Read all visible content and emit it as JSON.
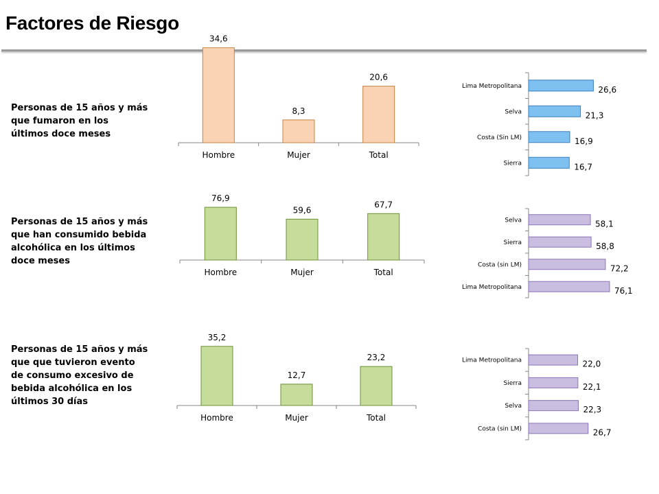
{
  "page": {
    "title": "Factores de Riesgo"
  },
  "rows": [
    {
      "label": "Personas de 15 años y más que fumaron en los últimos doce meses"
    },
    {
      "label": "Personas de 15 años y más que han consumido bebida alcohólica en los últimos doce meses"
    },
    {
      "label": "Personas de 15 años y más que que tuvieron evento de consumo excesivo de bebida alcohólica en los últimos 30 días"
    }
  ],
  "chart_data": [
    {
      "type": "bar",
      "orientation": "vertical",
      "categories": [
        "Hombre",
        "Mujer",
        "Total"
      ],
      "values": [
        34.6,
        8.3,
        20.6
      ],
      "labels": [
        "34,6",
        "8,3",
        "20,6"
      ],
      "ylim": [
        0,
        40
      ],
      "grid": false,
      "fill": "#fad3b4",
      "stroke": "#c8823f"
    },
    {
      "type": "bar",
      "orientation": "horizontal",
      "categories": [
        "Lima Metropolitana",
        "Selva",
        "Costa (Sin LM)",
        "Sierra"
      ],
      "values": [
        26.6,
        21.3,
        16.9,
        16.7
      ],
      "labels": [
        "26,6",
        "21,3",
        "16,9",
        "16,7"
      ],
      "xlim": [
        0,
        28
      ],
      "grid": false,
      "fill": "#7ec0f0",
      "stroke": "#3a7fc1"
    },
    {
      "type": "bar",
      "orientation": "vertical",
      "categories": [
        "Hombre",
        "Mujer",
        "Total"
      ],
      "values": [
        76.9,
        59.6,
        67.7
      ],
      "labels": [
        "76,9",
        "59,6",
        "67,7"
      ],
      "ylim": [
        0,
        90
      ],
      "grid": false,
      "fill": "#c5dc9b",
      "stroke": "#6d8f35"
    },
    {
      "type": "bar",
      "orientation": "horizontal",
      "categories": [
        "Selva",
        "Sierra",
        "Costa (sin LM)",
        "Lima Metropolitana"
      ],
      "values": [
        58.1,
        58.8,
        72.2,
        76.1
      ],
      "labels": [
        "58,1",
        "58,8",
        "72,2",
        "76,1"
      ],
      "xlim": [
        0,
        78
      ],
      "grid": false,
      "fill": "#c9bde0",
      "stroke": "#8a73b8"
    },
    {
      "type": "bar",
      "orientation": "vertical",
      "categories": [
        "Hombre",
        "Mujer",
        "Total"
      ],
      "values": [
        35.2,
        12.7,
        23.2
      ],
      "labels": [
        "35,2",
        "12,7",
        "23,2"
      ],
      "ylim": [
        0,
        40
      ],
      "grid": false,
      "fill": "#c5dc9b",
      "stroke": "#6d8f35"
    },
    {
      "type": "bar",
      "orientation": "horizontal",
      "categories": [
        "Lima Metropolitana",
        "Sierra",
        "Selva",
        "Costa (sin LM)"
      ],
      "values": [
        22.0,
        22.1,
        22.3,
        26.7
      ],
      "labels": [
        "22,0",
        "22,1",
        "22,3",
        "26,7"
      ],
      "xlim": [
        0,
        28
      ],
      "grid": false,
      "fill": "#c9bde0",
      "stroke": "#8a73b8"
    }
  ]
}
